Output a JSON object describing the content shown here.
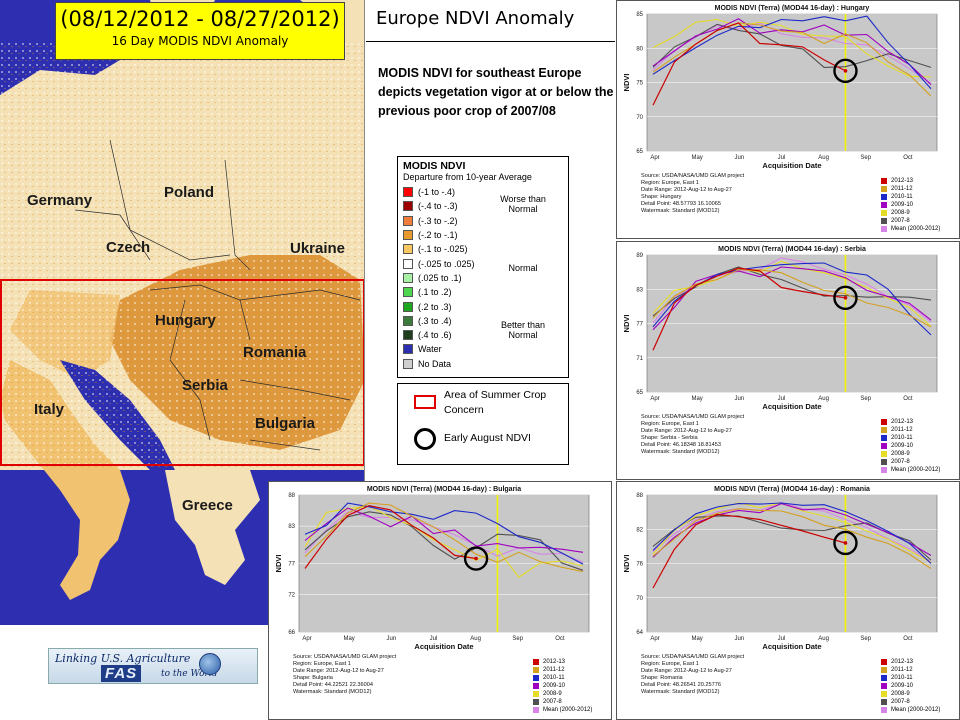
{
  "header": {
    "date_range": "(08/12/2012 - 08/27/2012)",
    "subtitle": "16 Day MODIS NDVI Anomaly",
    "title": "Europe NDVI Anomaly"
  },
  "description": "MODIS NDVI for southeast Europe depicts vegetation vigor at or below the previous poor crop of 2007/08",
  "map": {
    "countries": [
      "Germany",
      "Poland",
      "Czech",
      "Ukraine",
      "Hungary",
      "Romania",
      "Serbia",
      "Italy",
      "Bulgaria",
      "Greece"
    ],
    "colors": {
      "water": "#2e2fb0",
      "land": "#f4e2b6",
      "anomaly_strong": "#d98b28",
      "anomaly_mild": "#f1c270",
      "normal": "#ffffff",
      "no_data": "#cfcfcf",
      "concern_box": "#e00000"
    }
  },
  "legend": {
    "title": "MODIS NDVI",
    "subtitle": "Departure from 10-year Average",
    "items": [
      {
        "label": "(-1 to -.4)",
        "color": "#ff0000"
      },
      {
        "label": "(-.4 to -.3)",
        "color": "#9c0000"
      },
      {
        "label": "(-.3 to -.2)",
        "color": "#f07c3c"
      },
      {
        "label": "(-.2 to -.1)",
        "color": "#e89a2c"
      },
      {
        "label": "(-.1 to -.025)",
        "color": "#f7c860"
      },
      {
        "label": "(-.025 to .025)",
        "color": "#ffffff"
      },
      {
        "label": "(.025 to .1)",
        "color": "#a6f0a6"
      },
      {
        "label": "(.1 to .2)",
        "color": "#4fd64f"
      },
      {
        "label": "(.2 to .3)",
        "color": "#1fa61f"
      },
      {
        "label": "(.3 to .4)",
        "color": "#3c7a3c"
      },
      {
        "label": "(.4 to .6)",
        "color": "#1e3c1e"
      },
      {
        "label": "Water",
        "color": "#2e2fb0"
      },
      {
        "label": "No Data",
        "color": "#cfcfcf"
      }
    ],
    "groups": [
      "Worse than Normal",
      "Normal",
      "Better than Normal"
    ]
  },
  "overlay_legend": {
    "area": "Area of Summer Crop Concern",
    "circle": "Early August NDVI"
  },
  "logo": {
    "line1": "Linking U.S. Agriculture",
    "fas": "FAS",
    "line2": "to the World"
  },
  "series_colors": [
    "#cc0000",
    "#d4a020",
    "#1c28c8",
    "#a000c0",
    "#e6dc28",
    "#505050",
    "#d684e8"
  ],
  "chart_data": [
    {
      "type": "line",
      "title": "MODIS NDVI (Terra) (MOD44 16-day) : Hungary",
      "xlabel": "Acquisition Date",
      "ylabel": "NDVI",
      "ylim": [
        65,
        85
      ],
      "yticks": [
        65,
        70,
        75,
        80,
        85
      ],
      "xticks": [
        "Apr",
        "May",
        "Jun",
        "Jul",
        "Aug",
        "Sep",
        "Oct"
      ],
      "marker_period": 9,
      "meta": [
        "Source: USDA/NASA/UMD GLAM project",
        "Region: Europe, East 1",
        "Date Range: 2012-Aug-12 to Aug-27",
        "Shape: Hungary",
        "Detail Point: 48.57793 16.10065",
        "Watermask: Standard (MOD12)"
      ],
      "series": [
        {
          "name": "2012-13",
          "values": [
            71.7,
            78,
            80.6,
            82.6,
            83.7,
            80.7,
            80.5,
            80.2,
            78.3,
            76.7
          ]
        },
        {
          "name": "2011-12",
          "values": [
            76.5,
            78.7,
            80.6,
            82.6,
            83.7,
            83.4,
            82.5,
            82.3,
            80.7,
            82.1,
            80.8,
            78,
            76.1,
            73
          ]
        },
        {
          "name": "2010-11",
          "values": [
            76.2,
            78.2,
            80.1,
            81.9,
            83.2,
            83,
            84.2,
            84,
            84.6,
            84,
            84.7,
            80.8,
            77.6,
            74.1
          ]
        },
        {
          "name": "2009-10",
          "values": [
            77.4,
            79.6,
            81.8,
            82.8,
            84.3,
            82.2,
            82.7,
            82.4,
            83.4,
            81.9,
            82,
            79.5,
            77.6,
            74.7
          ]
        },
        {
          "name": "2008-9",
          "values": [
            80.1,
            81.7,
            83.8,
            84.2,
            83.2,
            83.8,
            83.3,
            82,
            81.8,
            81.7,
            79.2,
            77.4,
            75.9,
            75.8
          ]
        },
        {
          "name": "2007-8",
          "values": [
            77.2,
            80.2,
            81.7,
            83.5,
            82.6,
            82.1,
            80.4,
            79.9,
            77.2,
            77.3,
            78.2,
            79.2,
            78.2,
            77.2
          ]
        },
        {
          "name": "Mean (2000-2012)",
          "values": [
            76.8,
            79.7,
            81.6,
            83.3,
            82.8,
            83.7,
            82.1,
            81.6,
            81.5,
            80.7,
            80.5,
            78.9,
            77,
            74.9
          ]
        }
      ]
    },
    {
      "type": "line",
      "title": "MODIS NDVI (Terra) (MOD44 16-day) : Serbia",
      "xlabel": "Acquisition Date",
      "ylabel": "NDVI",
      "ylim": [
        65,
        89
      ],
      "yticks": [
        65,
        71,
        77,
        83,
        89
      ],
      "xticks": [
        "Apr",
        "May",
        "Jun",
        "Jul",
        "Aug",
        "Sep",
        "Oct"
      ],
      "marker_period": 9,
      "meta": [
        "Source: USDA/NASA/UMD GLAM project",
        "Region: Europe, East 1",
        "Date Range: 2012-Aug-12 to Aug-27",
        "Shape: Serbia - Serbia",
        "Detail Point: 46.18348 18.81453",
        "Watermask: Standard (MOD12)"
      ],
      "series": [
        {
          "name": "2012-13",
          "values": [
            72.3,
            80.6,
            83.7,
            85.3,
            86.7,
            86.2,
            83.3,
            82.6,
            82,
            81.5
          ]
        },
        {
          "name": "2011-12",
          "values": [
            78,
            81.8,
            83.9,
            84.7,
            86.4,
            86.4,
            85.9,
            84.2,
            82.8,
            82.2,
            80.6,
            79.8,
            78.4,
            76.4
          ]
        },
        {
          "name": "2010-11",
          "values": [
            76.4,
            80.9,
            83.6,
            85.6,
            86.4,
            86.9,
            87.3,
            87.5,
            87.6,
            86,
            85.5,
            83,
            78.6,
            75
          ]
        },
        {
          "name": "2009-10",
          "values": [
            75.9,
            79.8,
            84.4,
            85.6,
            86.2,
            85.2,
            86.9,
            86.6,
            86.2,
            85,
            82.8,
            81.7,
            80.5,
            77.6
          ]
        },
        {
          "name": "2008-9",
          "values": [
            78.8,
            82.8,
            83.5,
            84.7,
            86.6,
            86,
            87.9,
            86.6,
            85.9,
            84.8,
            83.3,
            81.4,
            79.8,
            76.5
          ]
        },
        {
          "name": "2007-8",
          "values": [
            78.3,
            81.4,
            83.4,
            85.6,
            86.9,
            85.6,
            84.7,
            83.2,
            81.8,
            81.9,
            81.6,
            81.7,
            81.6,
            81.1
          ]
        },
        {
          "name": "Mean (2000-2012)",
          "values": [
            77.1,
            81.5,
            83.7,
            85.3,
            86.1,
            86.5,
            88.5,
            87.8,
            86.5,
            85.5,
            83.9,
            81.7,
            80.2,
            77.3
          ]
        }
      ]
    },
    {
      "type": "line",
      "title": "MODIS NDVI (Terra) (MOD44 16-day) : Bulgaria",
      "xlabel": "Acquisition Date",
      "ylabel": "NDVI",
      "ylim": [
        66,
        88
      ],
      "yticks": [
        66,
        72,
        77,
        83,
        88
      ],
      "xticks": [
        "Apr",
        "May",
        "Jun",
        "Jul",
        "Aug",
        "Sep",
        "Oct"
      ],
      "marker_period": 9,
      "meta": [
        "Source: USDA/NASA/UMD GLAM project",
        "Region: Europe, East 1",
        "Date Range: 2012-Aug-12 to Aug-27",
        "Shape: Bulgaria",
        "Detail Point: 44.22521 22.36004",
        "Watermask: Standard (MOD12)"
      ],
      "series": [
        {
          "name": "2012-13",
          "values": [
            76.2,
            80.9,
            84.7,
            86.3,
            85.6,
            83.1,
            81.1,
            78.3,
            77.8
          ]
        },
        {
          "name": "2011-12",
          "values": [
            78.1,
            81.4,
            85.1,
            86.7,
            86.4,
            84.6,
            82.9,
            80.8,
            78.5,
            77.2,
            78.8,
            77.3,
            76.4,
            75.7
          ]
        },
        {
          "name": "2010-11",
          "values": [
            81.7,
            83.1,
            86.7,
            86.1,
            85.3,
            84.9,
            84.1,
            85.5,
            85.1,
            83.4,
            81.3,
            80.4,
            78.7,
            76.9
          ]
        },
        {
          "name": "2009-10",
          "values": [
            80.7,
            83.4,
            85.9,
            84.6,
            82.9,
            84.6,
            81.8,
            82.4,
            79.8,
            80.2,
            79.5,
            79.6,
            79.3,
            78.8
          ]
        },
        {
          "name": "2008-9",
          "values": [
            79.7,
            85.2,
            85.8,
            86.2,
            84.4,
            83.1,
            80.8,
            79.2,
            77.5,
            79.3,
            74.8,
            77.1,
            77.4,
            76.6
          ]
        },
        {
          "name": "2007-8",
          "values": [
            79.2,
            82.2,
            84.5,
            85.3,
            84.8,
            82.9,
            79.9,
            77.7,
            79.5,
            81.7,
            81.5,
            80.8,
            77.1,
            75.9
          ]
        },
        {
          "name": "Mean (2000-2012)",
          "values": [
            78.7,
            82.4,
            85.3,
            84.4,
            84.4,
            84,
            82.9,
            81.6,
            79.9,
            78.2,
            79.5,
            78.5,
            78.6,
            77.2
          ]
        }
      ]
    },
    {
      "type": "line",
      "title": "MODIS NDVI (Terra) (MOD44 16-day) : Romania",
      "xlabel": "Acquisition Date",
      "ylabel": "NDVI",
      "ylim": [
        64,
        88
      ],
      "yticks": [
        64,
        70,
        76,
        82,
        88
      ],
      "xticks": [
        "Apr",
        "May",
        "Jun",
        "Jul",
        "Aug",
        "Sep",
        "Oct"
      ],
      "marker_period": 9,
      "meta": [
        "Source: USDA/NASA/UMD GLAM project",
        "Region: Europe, East 1",
        "Date Range: 2012-Aug-12 to Aug-27",
        "Shape: Romania",
        "Detail Point: 48.26541 20.25776",
        "Watermask: Standard (MOD12)"
      ],
      "series": [
        {
          "name": "2012-13",
          "values": [
            71.7,
            78.5,
            82.8,
            84.6,
            84.2,
            83.7,
            82.7,
            81.7,
            80.6,
            79.6
          ]
        },
        {
          "name": "2011-12",
          "values": [
            77.3,
            80.3,
            83.5,
            84.8,
            85.6,
            85.3,
            85.2,
            84.2,
            82.7,
            82,
            80.6,
            79.5,
            77.6,
            75.1
          ]
        },
        {
          "name": "2010-11",
          "values": [
            78.3,
            81.9,
            84.7,
            85.9,
            86.5,
            86.4,
            86.6,
            86.2,
            86.3,
            85.1,
            83.5,
            81.6,
            79.5,
            76
          ]
        },
        {
          "name": "2009-10",
          "values": [
            77.1,
            80.6,
            83.1,
            84.5,
            85.3,
            84.9,
            86.5,
            85.4,
            85.6,
            84.5,
            82.9,
            81.4,
            79.6,
            77.4
          ]
        },
        {
          "name": "2008-9",
          "values": [
            77.7,
            81.8,
            84.3,
            85.6,
            86.6,
            85.8,
            86.6,
            85.2,
            84.3,
            83.2,
            81.7,
            80.2,
            78.2,
            76.2
          ]
        },
        {
          "name": "2007-8",
          "values": [
            79,
            82,
            84.1,
            84.3,
            84.3,
            83.2,
            82.2,
            81.9,
            81.8,
            82.6,
            83.1,
            81.3,
            80,
            76.6
          ]
        },
        {
          "name": "Mean (2000-2012)",
          "values": [
            78.1,
            81.2,
            83.7,
            85.1,
            85.6,
            85.3,
            86.7,
            85.6,
            85.2,
            83.7,
            82.3,
            80.3,
            78.6,
            76.3
          ]
        }
      ]
    }
  ]
}
